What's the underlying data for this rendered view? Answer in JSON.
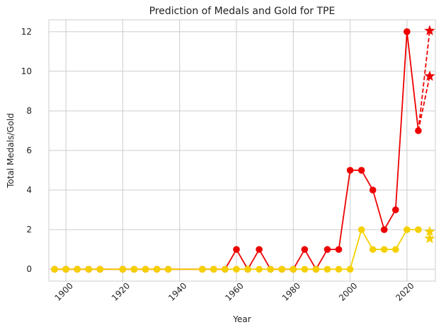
{
  "chart_data": {
    "type": "line",
    "title": "Prediction of Medals and Gold for TPE",
    "xlabel": "Year",
    "ylabel": "Total Medals/Gold",
    "xlim": [
      1894,
      2030
    ],
    "ylim": [
      -0.6,
      12.6
    ],
    "xticks": [
      1900,
      1920,
      1940,
      1960,
      1980,
      2000,
      2020
    ],
    "yticks": [
      0,
      2,
      4,
      6,
      8,
      10,
      12
    ],
    "grid": true,
    "series": [
      {
        "color": "#ee0000",
        "marker": "circle",
        "line": "solid",
        "x": [
          1896,
          1900,
          1904,
          1908,
          1912,
          1920,
          1924,
          1928,
          1932,
          1936,
          1948,
          1952,
          1956,
          1960,
          1964,
          1968,
          1972,
          1976,
          1980,
          1984,
          1988,
          1992,
          1996,
          2000,
          2004,
          2008,
          2012,
          2016,
          2020,
          2024
        ],
        "y": [
          0,
          0,
          0,
          0,
          0,
          0,
          0,
          0,
          0,
          0,
          0,
          0,
          0,
          1,
          0,
          1,
          0,
          0,
          0,
          1,
          0,
          1,
          1,
          5,
          5,
          4,
          2,
          3,
          12,
          7
        ]
      },
      {
        "color": "#f5d000",
        "marker": "circle",
        "line": "solid",
        "x": [
          1896,
          1900,
          1904,
          1908,
          1912,
          1920,
          1924,
          1928,
          1932,
          1936,
          1948,
          1952,
          1956,
          1960,
          1964,
          1968,
          1972,
          1976,
          1980,
          1984,
          1988,
          1992,
          1996,
          2000,
          2004,
          2008,
          2012,
          2016,
          2020,
          2024
        ],
        "y": [
          0,
          0,
          0,
          0,
          0,
          0,
          0,
          0,
          0,
          0,
          0,
          0,
          0,
          0,
          0,
          0,
          0,
          0,
          0,
          0,
          0,
          0,
          0,
          0,
          2,
          1,
          1,
          1,
          2,
          2
        ]
      },
      {
        "color": "#ee0000",
        "marker": "star",
        "line": "dashed",
        "x": [
          2024,
          2028
        ],
        "y": [
          7,
          12.05
        ],
        "y2": [
          7,
          9.75
        ]
      },
      {
        "color": "#f5d000",
        "marker": "star",
        "line": "none",
        "x": [
          2028,
          2028
        ],
        "y": [
          1.9,
          1.55
        ]
      }
    ]
  }
}
